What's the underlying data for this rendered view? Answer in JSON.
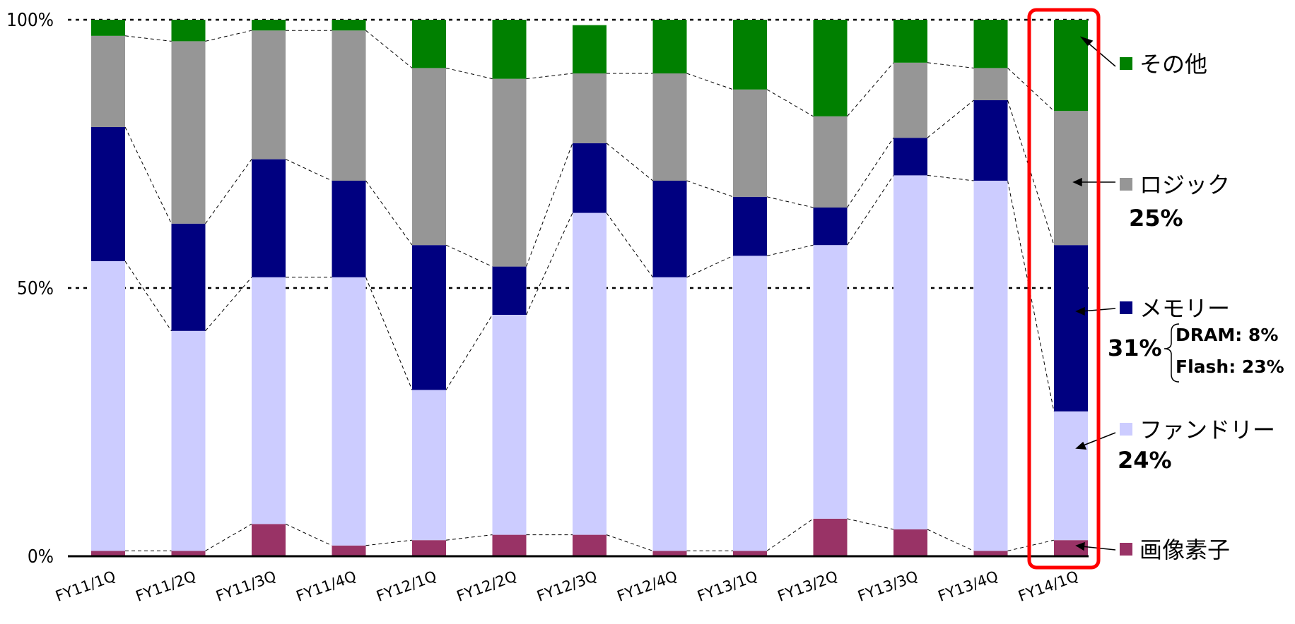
{
  "chart_data": {
    "type": "bar",
    "stacked": true,
    "percent": true,
    "categories": [
      "FY11/1Q",
      "FY11/2Q",
      "FY11/3Q",
      "FY11/4Q",
      "FY12/1Q",
      "FY12/2Q",
      "FY12/3Q",
      "FY12/4Q",
      "FY13/1Q",
      "FY13/2Q",
      "FY13/3Q",
      "FY13/4Q",
      "FY14/1Q"
    ],
    "series": [
      {
        "name": "画像素子",
        "color": "#993366",
        "values": [
          1,
          1,
          6,
          2,
          3,
          4,
          4,
          1,
          1,
          7,
          5,
          1,
          3
        ]
      },
      {
        "name": "ファンドリー",
        "color": "#ccccff",
        "values": [
          54,
          41,
          46,
          50,
          28,
          41,
          60,
          51,
          55,
          51,
          66,
          69,
          24
        ]
      },
      {
        "name": "メモリー",
        "color": "#000080",
        "values": [
          25,
          20,
          22,
          18,
          27,
          9,
          13,
          18,
          11,
          7,
          7,
          15,
          31
        ]
      },
      {
        "name": "ロジック",
        "color": "#969696",
        "values": [
          17,
          34,
          24,
          28,
          33,
          35,
          13,
          20,
          20,
          17,
          14,
          6,
          25
        ]
      },
      {
        "name": "その他",
        "color": "#008000",
        "values": [
          3,
          4,
          2,
          2,
          9,
          11,
          9,
          10,
          13,
          18,
          8,
          9,
          17
        ]
      }
    ],
    "y_ticks": [
      "0%",
      "50%",
      "100%"
    ],
    "ylim": [
      0,
      100
    ],
    "gridlines": [
      50,
      100
    ],
    "connector_lines": true,
    "highlight_category": "FY14/1Q",
    "highlight_color": "#ff0000",
    "legend_position": "right",
    "annotations": {
      "logic_pct": "25%",
      "memory_pct": "31%",
      "dram": "DRAM: 8%",
      "flash": "Flash: 23%",
      "foundry_pct": "24%"
    }
  }
}
